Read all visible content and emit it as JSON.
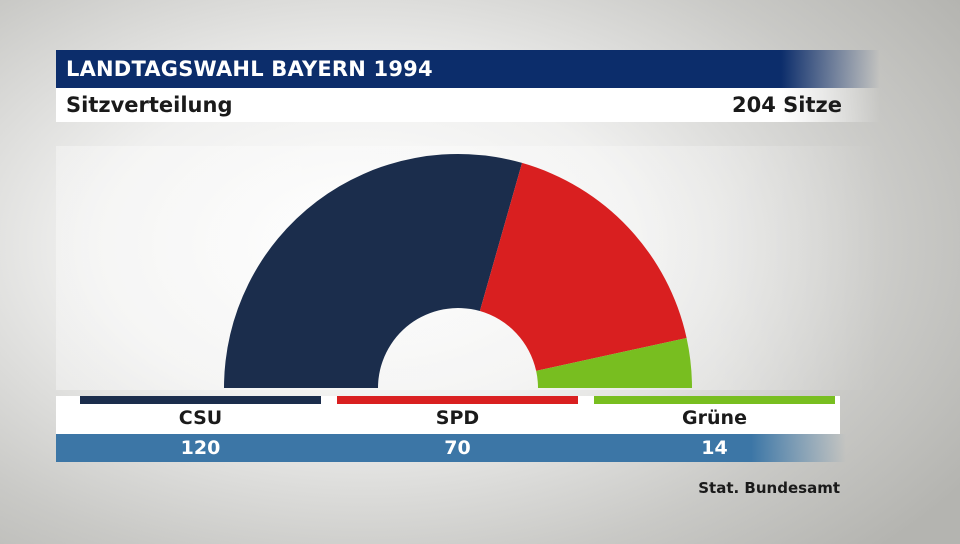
{
  "header": {
    "title": "LANDTAGSWAHL BAYERN 1994",
    "subtitle": "Sitzverteilung",
    "total_label": "204 Sitze"
  },
  "chart_data": {
    "type": "pie",
    "variant": "half-donut (parliament seat distribution)",
    "total": 204,
    "series": [
      {
        "name": "CSU",
        "value": 120,
        "color": "#1b2d4c"
      },
      {
        "name": "SPD",
        "value": 70,
        "color": "#d91f20"
      },
      {
        "name": "Grüne",
        "value": 14,
        "color": "#78be20"
      }
    ]
  },
  "legend": [
    {
      "name": "CSU",
      "value": "120",
      "color": "#1b2d4c"
    },
    {
      "name": "SPD",
      "value": "70",
      "color": "#d91f20"
    },
    {
      "name": "Grüne",
      "value": "14",
      "color": "#78be20"
    }
  ],
  "source": "Stat. Bundesamt"
}
